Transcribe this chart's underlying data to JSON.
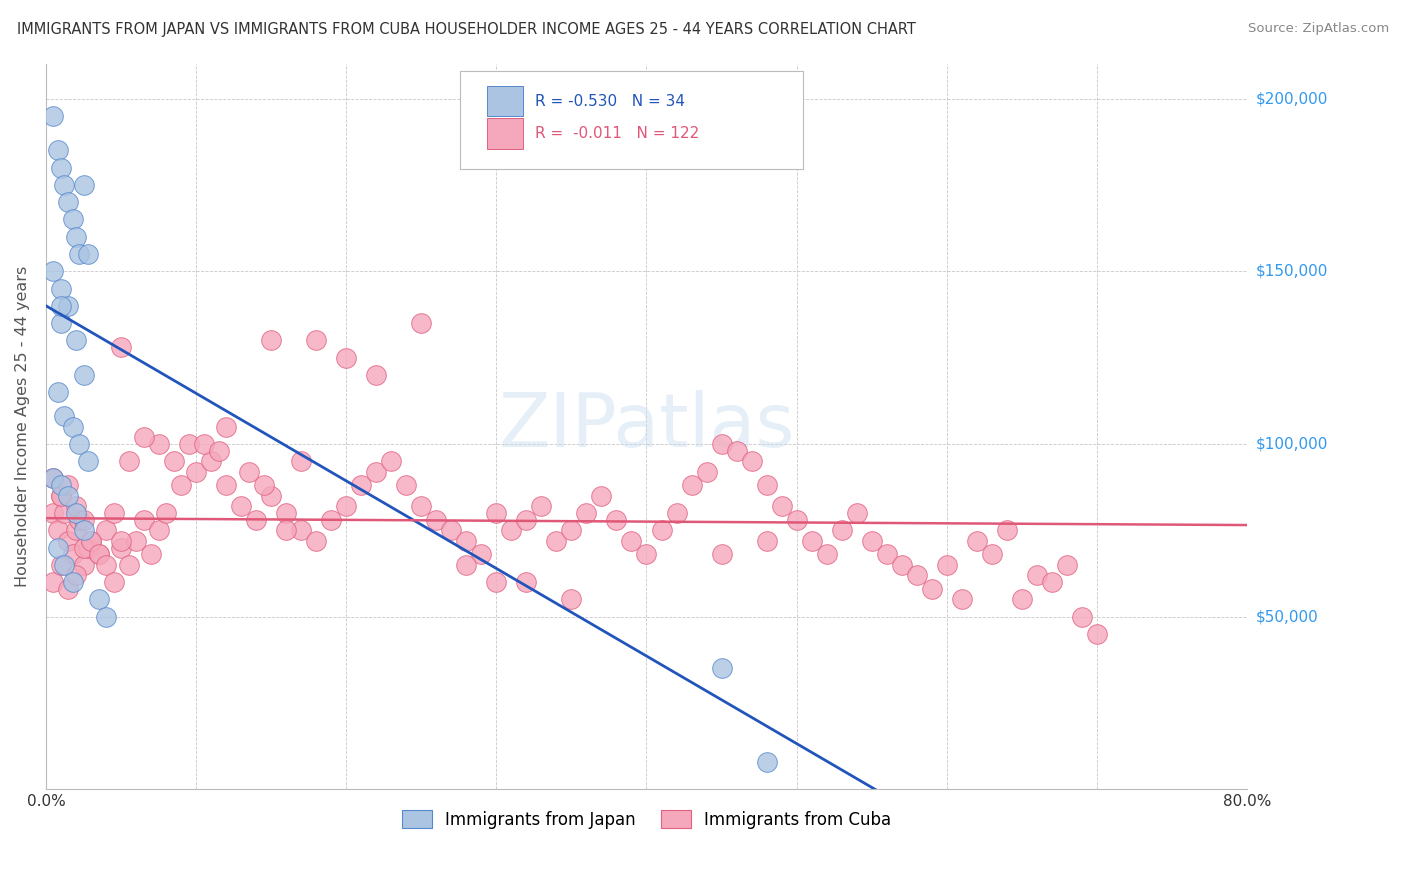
{
  "title": "IMMIGRANTS FROM JAPAN VS IMMIGRANTS FROM CUBA HOUSEHOLDER INCOME AGES 25 - 44 YEARS CORRELATION CHART",
  "source": "Source: ZipAtlas.com",
  "ylabel": "Householder Income Ages 25 - 44 years",
  "ymin": 0,
  "ymax": 210000,
  "xmin": 0.0,
  "xmax": 0.8,
  "yticks": [
    0,
    50000,
    100000,
    150000,
    200000
  ],
  "ytick_labels": [
    "",
    "$50,000",
    "$100,000",
    "$150,000",
    "$200,000"
  ],
  "xticks": [
    0.0,
    0.1,
    0.2,
    0.3,
    0.4,
    0.5,
    0.6,
    0.7,
    0.8
  ],
  "japan_color": "#aac4e2",
  "cuba_color": "#f5a8bc",
  "japan_edge_color": "#5588cc",
  "cuba_edge_color": "#e06080",
  "japan_line_color": "#2255bb",
  "cuba_line_color": "#e05878",
  "japan_R": -0.53,
  "japan_N": 34,
  "cuba_R": -0.011,
  "cuba_N": 122,
  "legend_label_japan": "Immigrants from Japan",
  "legend_label_cuba": "Immigrants from Cuba",
  "background_color": "#ffffff",
  "grid_color": "#c8c8c8",
  "title_color": "#333333",
  "watermark": "ZIPatlas",
  "japan_line_x0": 0.0,
  "japan_line_y0": 140000,
  "japan_line_x1": 0.56,
  "japan_line_y1": -2000,
  "cuba_line_x0": 0.0,
  "cuba_line_y0": 78500,
  "cuba_line_x1": 0.8,
  "cuba_line_y1": 76500,
  "japan_x": [
    0.005,
    0.008,
    0.01,
    0.012,
    0.015,
    0.018,
    0.02,
    0.022,
    0.025,
    0.028,
    0.005,
    0.01,
    0.015,
    0.02,
    0.025,
    0.008,
    0.012,
    0.018,
    0.022,
    0.028,
    0.005,
    0.01,
    0.015,
    0.02,
    0.025,
    0.008,
    0.012,
    0.018,
    0.035,
    0.04,
    0.01,
    0.48,
    0.01,
    0.45
  ],
  "japan_y": [
    195000,
    185000,
    180000,
    175000,
    170000,
    165000,
    160000,
    155000,
    175000,
    155000,
    150000,
    145000,
    140000,
    130000,
    120000,
    115000,
    108000,
    105000,
    100000,
    95000,
    90000,
    88000,
    85000,
    80000,
    75000,
    70000,
    65000,
    60000,
    55000,
    50000,
    135000,
    8000,
    140000,
    35000
  ],
  "cuba_x": [
    0.005,
    0.008,
    0.01,
    0.012,
    0.015,
    0.018,
    0.02,
    0.022,
    0.025,
    0.028,
    0.005,
    0.01,
    0.015,
    0.02,
    0.025,
    0.03,
    0.035,
    0.04,
    0.045,
    0.05,
    0.055,
    0.06,
    0.065,
    0.07,
    0.075,
    0.08,
    0.09,
    0.1,
    0.11,
    0.12,
    0.005,
    0.01,
    0.015,
    0.02,
    0.025,
    0.03,
    0.035,
    0.04,
    0.045,
    0.05,
    0.13,
    0.14,
    0.15,
    0.16,
    0.17,
    0.18,
    0.19,
    0.2,
    0.21,
    0.22,
    0.23,
    0.24,
    0.25,
    0.26,
    0.27,
    0.28,
    0.29,
    0.3,
    0.31,
    0.32,
    0.33,
    0.34,
    0.35,
    0.36,
    0.37,
    0.38,
    0.39,
    0.4,
    0.41,
    0.42,
    0.43,
    0.44,
    0.45,
    0.46,
    0.47,
    0.48,
    0.49,
    0.5,
    0.51,
    0.52,
    0.53,
    0.54,
    0.55,
    0.56,
    0.57,
    0.58,
    0.59,
    0.6,
    0.61,
    0.62,
    0.63,
    0.64,
    0.65,
    0.66,
    0.67,
    0.68,
    0.69,
    0.7,
    0.45,
    0.48,
    0.15,
    0.2,
    0.25,
    0.3,
    0.35,
    0.18,
    0.22,
    0.28,
    0.32,
    0.12,
    0.16,
    0.05,
    0.095,
    0.105,
    0.115,
    0.135,
    0.145,
    0.085,
    0.075,
    0.065,
    0.055,
    0.17
  ],
  "cuba_y": [
    80000,
    75000,
    85000,
    80000,
    72000,
    68000,
    75000,
    78000,
    65000,
    70000,
    90000,
    85000,
    88000,
    82000,
    78000,
    72000,
    68000,
    75000,
    80000,
    70000,
    65000,
    72000,
    78000,
    68000,
    75000,
    80000,
    88000,
    92000,
    95000,
    88000,
    60000,
    65000,
    58000,
    62000,
    70000,
    72000,
    68000,
    65000,
    60000,
    72000,
    82000,
    78000,
    85000,
    80000,
    75000,
    72000,
    78000,
    82000,
    88000,
    92000,
    95000,
    88000,
    82000,
    78000,
    75000,
    72000,
    68000,
    80000,
    75000,
    78000,
    82000,
    72000,
    75000,
    80000,
    85000,
    78000,
    72000,
    68000,
    75000,
    80000,
    88000,
    92000,
    100000,
    98000,
    95000,
    88000,
    82000,
    78000,
    72000,
    68000,
    75000,
    80000,
    72000,
    68000,
    65000,
    62000,
    58000,
    65000,
    55000,
    72000,
    68000,
    75000,
    55000,
    62000,
    60000,
    65000,
    50000,
    45000,
    68000,
    72000,
    130000,
    125000,
    135000,
    60000,
    55000,
    130000,
    120000,
    65000,
    60000,
    105000,
    75000,
    128000,
    100000,
    100000,
    98000,
    92000,
    88000,
    95000,
    100000,
    102000,
    95000,
    95000
  ]
}
